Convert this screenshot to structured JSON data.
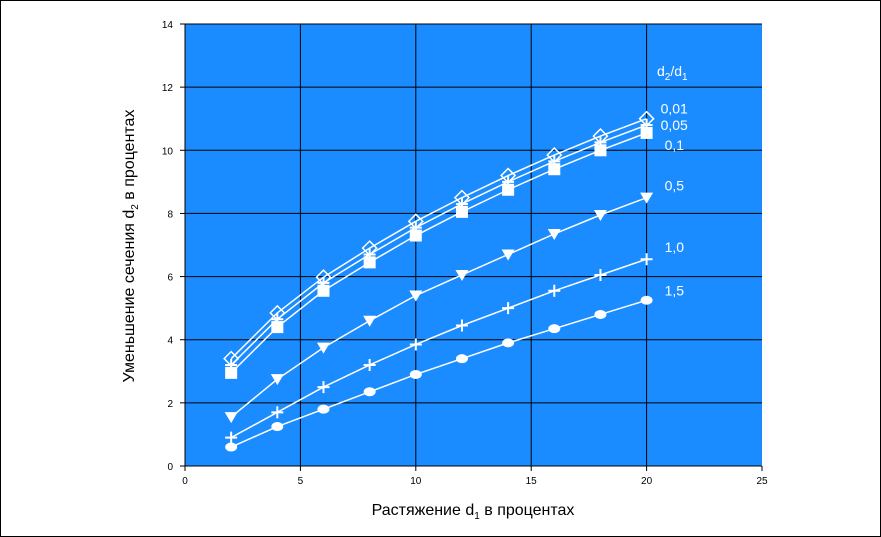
{
  "chart_data": {
    "type": "line",
    "title": "",
    "xlabel": {
      "main": "Растяжение d",
      "sub": "1",
      "rest": " в процентах"
    },
    "ylabel": {
      "main": "Уменьшение сечения d",
      "sub": "2",
      "rest": " в процентах"
    },
    "xlim": [
      0,
      25
    ],
    "ylim": [
      0,
      14
    ],
    "xticks": [
      0,
      5,
      10,
      15,
      20,
      25
    ],
    "yticks": [
      0,
      2,
      4,
      6,
      8,
      10,
      12,
      14
    ],
    "grid": true,
    "background_color": "#1a8cff",
    "line_color": "#ffffff",
    "legend_header": {
      "a": "d",
      "a_sub": "2",
      "slash": "/d",
      "b_sub": "1"
    },
    "x": [
      2,
      4,
      6,
      8,
      10,
      12,
      14,
      16,
      18,
      20
    ],
    "series": [
      {
        "name": "0,01",
        "marker": "diamond",
        "values": [
          3.4,
          4.85,
          5.98,
          6.9,
          7.75,
          8.5,
          9.2,
          9.85,
          10.45,
          11.0
        ]
      },
      {
        "name": "0,05",
        "marker": "plus",
        "values": [
          3.2,
          4.65,
          5.8,
          6.7,
          7.55,
          8.3,
          9.0,
          9.65,
          10.25,
          10.8
        ]
      },
      {
        "name": "0,1",
        "marker": "square",
        "values": [
          2.95,
          4.4,
          5.55,
          6.45,
          7.3,
          8.05,
          8.75,
          9.4,
          10.0,
          10.55
        ]
      },
      {
        "name": "0,5",
        "marker": "triangle",
        "values": [
          1.55,
          2.75,
          3.75,
          4.6,
          5.4,
          6.05,
          6.7,
          7.35,
          7.95,
          8.5
        ]
      },
      {
        "name": "1,0",
        "marker": "plus",
        "values": [
          0.9,
          1.7,
          2.5,
          3.2,
          3.85,
          4.45,
          5.0,
          5.55,
          6.05,
          6.55
        ]
      },
      {
        "name": "1,5",
        "marker": "circle",
        "values": [
          0.6,
          1.25,
          1.8,
          2.35,
          2.9,
          3.4,
          3.9,
          4.35,
          4.8,
          5.25
        ]
      }
    ]
  }
}
